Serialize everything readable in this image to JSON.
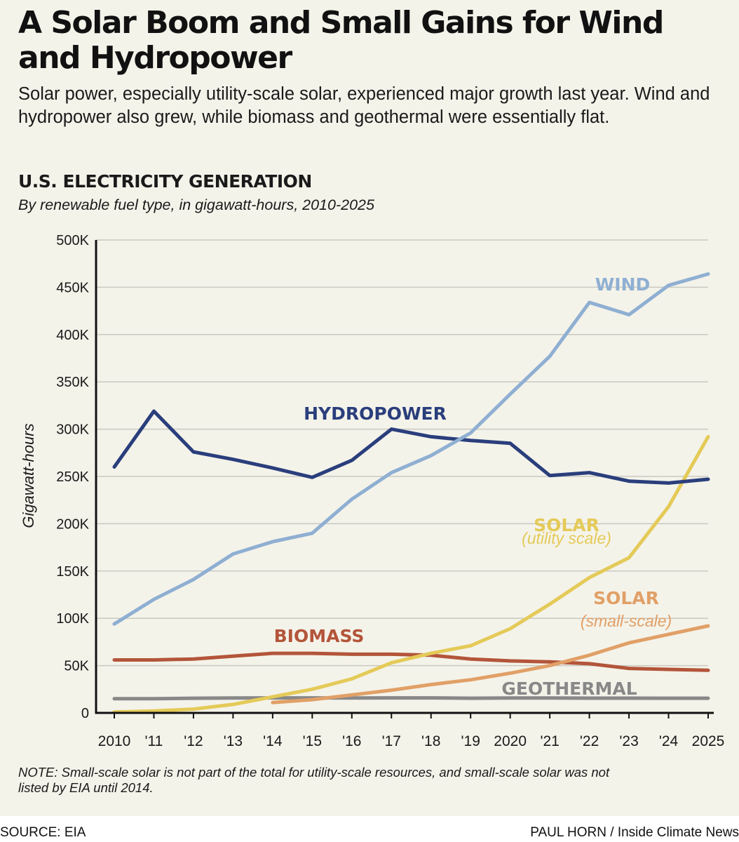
{
  "headline": "A Solar Boom and Small Gains for Wind and Hydropower",
  "dek": "Solar power, especially utility-scale solar, experienced major growth last year. Wind and hydropower also grew, while biomass and geothermal were essentially flat.",
  "note": "NOTE: Small-scale solar is not part of the total for utility-scale resources, and small-scale solar was not listed by EIA until 2014.",
  "source": "SOURCE: EIA",
  "credit": "PAUL HORN / Inside Climate News",
  "chart_data": {
    "type": "line",
    "title": "U.S. ELECTRICITY GENERATION",
    "subtitle": "By renewable fuel type, in gigawatt-hours, 2010-2025",
    "ylabel": "Gigawatt-hours",
    "xlabel": "",
    "ylim": [
      0,
      500000
    ],
    "y_ticks": [
      0,
      50000,
      100000,
      150000,
      200000,
      250000,
      300000,
      350000,
      400000,
      450000,
      500000
    ],
    "y_tick_labels": [
      "0",
      "50K",
      "100K",
      "150K",
      "200K",
      "250K",
      "300K",
      "350K",
      "400K",
      "450K",
      "500K"
    ],
    "x": [
      2010,
      2011,
      2012,
      2013,
      2014,
      2015,
      2016,
      2017,
      2018,
      2019,
      2020,
      2021,
      2022,
      2023,
      2024,
      2025
    ],
    "x_tick_labels": [
      "2010",
      "'11",
      "'12",
      "'13",
      "'14",
      "'15",
      "'16",
      "'17",
      "'18",
      "'19",
      "2020",
      "'21",
      "'22",
      "'23",
      "'24",
      "2025"
    ],
    "grid": true,
    "series": [
      {
        "name": "WIND",
        "color": "#8fafd2",
        "values": [
          94000,
          120000,
          141000,
          168000,
          181000,
          190000,
          226000,
          254000,
          272000,
          296000,
          337000,
          377000,
          434000,
          421000,
          452000,
          464000
        ]
      },
      {
        "name": "HYDROPOWER",
        "color": "#2a3e7c",
        "values": [
          260000,
          319000,
          276000,
          268000,
          259000,
          249000,
          267000,
          300000,
          292000,
          288000,
          285000,
          251000,
          254000,
          245000,
          243000,
          247000
        ]
      },
      {
        "name": "SOLAR",
        "sublabel": "(utility scale)",
        "color": "#e4ca58",
        "values": [
          1000,
          2000,
          4000,
          9000,
          17000,
          25000,
          36000,
          53000,
          63000,
          71000,
          89000,
          115000,
          143000,
          164000,
          218000,
          292000
        ]
      },
      {
        "name": "SOLAR",
        "sublabel": "(small-scale)",
        "color": "#e1a067",
        "x": [
          2014,
          2015,
          2016,
          2017,
          2018,
          2019,
          2020,
          2021,
          2022,
          2023,
          2024,
          2025
        ],
        "values": [
          11000,
          14000,
          19000,
          24000,
          30000,
          35000,
          42000,
          50000,
          61000,
          74000,
          83000,
          92000
        ]
      },
      {
        "name": "BIOMASS",
        "color": "#b3553a",
        "values": [
          56000,
          56000,
          57000,
          60000,
          63000,
          63000,
          62000,
          62000,
          61000,
          57000,
          55000,
          54000,
          52000,
          47000,
          46000,
          45000
        ]
      },
      {
        "name": "GEOTHERMAL",
        "color": "#888888",
        "values": [
          15000,
          15000,
          15500,
          15700,
          15900,
          15900,
          15800,
          15900,
          15900,
          15500,
          15800,
          15700,
          15600,
          15600,
          15500,
          15500
        ]
      }
    ]
  }
}
